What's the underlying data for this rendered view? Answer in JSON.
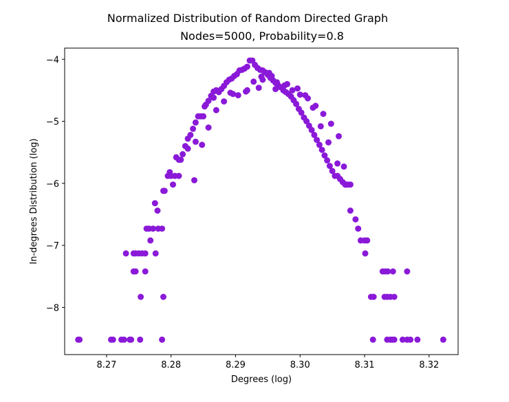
{
  "chart_data": {
    "type": "scatter",
    "suptitle": "Normalized Distribution of Random Directed Graph",
    "title": "Nodes=5000, Probability=0.8",
    "xlabel": "Degrees (log)",
    "ylabel": "In-degrees Distribution (log)",
    "xlim": [
      8.2635,
      8.3245
    ],
    "ylim": [
      -8.76,
      -3.82
    ],
    "x_ticks": [
      {
        "value": 8.27,
        "label": "8.27"
      },
      {
        "value": 8.28,
        "label": "8.28"
      },
      {
        "value": 8.29,
        "label": "8.29"
      },
      {
        "value": 8.3,
        "label": "8.30"
      },
      {
        "value": 8.31,
        "label": "8.31"
      },
      {
        "value": 8.32,
        "label": "8.32"
      }
    ],
    "y_ticks": [
      {
        "value": -4,
        "label": "−4"
      },
      {
        "value": -5,
        "label": "−5"
      },
      {
        "value": -6,
        "label": "−6"
      },
      {
        "value": -7,
        "label": "−7"
      },
      {
        "value": -8,
        "label": "−8"
      }
    ],
    "grid": false,
    "marker_color": "#8a19d8",
    "series": [
      {
        "x": [
          8.2656,
          8.2658,
          8.2707,
          8.271,
          8.2723,
          8.2727,
          8.2736,
          8.2738,
          8.2752,
          8.2786,
          8.3113,
          8.3135,
          8.314,
          8.3143,
          8.3146,
          8.3159,
          8.3166,
          8.3171,
          8.3182,
          8.3222,
          8.273,
          8.2742,
          8.2745,
          8.275,
          8.2755,
          8.276,
          8.2776,
          8.2742,
          8.2745,
          8.276,
          8.3128,
          8.3132,
          8.3136,
          8.3144,
          8.3166,
          8.2753,
          8.2788,
          8.311,
          8.3114,
          8.3131,
          8.3135,
          8.314,
          8.3146,
          8.2775,
          8.2766,
          8.2768,
          8.2762,
          8.2772,
          8.278,
          8.2786,
          8.3072,
          8.3078,
          8.3086,
          8.309,
          8.3094,
          8.31,
          8.3104,
          8.3101,
          8.2779,
          8.2788,
          8.279,
          8.2795,
          8.2798,
          8.28,
          8.2803,
          8.2806,
          8.2808,
          8.2812,
          8.2815,
          8.2818,
          8.2822,
          8.2826,
          8.283,
          8.2834,
          8.2838,
          8.2842,
          8.2846,
          8.285,
          8.2854,
          8.2858,
          8.2862,
          8.2866,
          8.287,
          8.2874,
          8.2878,
          8.2882,
          8.2886,
          8.289,
          8.2894,
          8.2898,
          8.2902,
          8.2906,
          8.291,
          8.2914,
          8.2918,
          8.2922,
          8.2926,
          8.293,
          8.2934,
          8.2938,
          8.2942,
          8.2946,
          8.295,
          8.2954,
          8.2958,
          8.2962,
          8.2966,
          8.297,
          8.2974,
          8.2978,
          8.2982,
          8.2986,
          8.299,
          8.2994,
          8.2998,
          8.3002,
          8.3006,
          8.301,
          8.3014,
          8.3018,
          8.3022,
          8.3026,
          8.303,
          8.3034,
          8.3038,
          8.3042,
          8.3046,
          8.305,
          8.3054,
          8.3058,
          8.3062,
          8.3066,
          8.307,
          8.3074,
          8.3078,
          8.2812,
          8.2826,
          8.2838,
          8.2848,
          8.2858,
          8.287,
          8.2882,
          8.2892,
          8.2904,
          8.2916,
          8.2928,
          8.294,
          8.2952,
          8.2964,
          8.2976,
          8.2988,
          8.3,
          8.3012,
          8.3024,
          8.3036,
          8.3048,
          8.306,
          8.3068,
          8.2836,
          8.2852,
          8.2866,
          8.2896,
          8.2918,
          8.2936,
          8.2942,
          8.2956,
          8.2962,
          8.298,
          8.2996,
          8.3008,
          8.302,
          8.3032,
          8.3044,
          8.3058
        ],
        "y": [
          -8.52,
          -8.52,
          -8.52,
          -8.52,
          -8.52,
          -8.52,
          -8.52,
          -8.52,
          -8.52,
          -8.52,
          -8.52,
          -8.52,
          -8.52,
          -8.52,
          -8.52,
          -8.52,
          -8.52,
          -8.52,
          -8.52,
          -8.52,
          -7.13,
          -7.13,
          -7.13,
          -7.13,
          -7.13,
          -7.13,
          -7.13,
          -7.42,
          -7.42,
          -7.42,
          -7.42,
          -7.42,
          -7.42,
          -7.42,
          -7.42,
          -7.83,
          -7.83,
          -7.83,
          -7.83,
          -7.83,
          -7.83,
          -7.83,
          -7.83,
          -6.32,
          -6.73,
          -6.92,
          -6.73,
          -6.73,
          -6.73,
          -6.73,
          -6.02,
          -6.44,
          -6.58,
          -6.73,
          -6.92,
          -6.92,
          -6.92,
          -7.13,
          -6.44,
          -6.12,
          -6.12,
          -5.88,
          -5.82,
          -5.88,
          -6.02,
          -5.88,
          -5.58,
          -5.62,
          -5.62,
          -5.53,
          -5.4,
          -5.28,
          -5.22,
          -5.12,
          -5.02,
          -4.92,
          -4.92,
          -4.92,
          -4.73,
          -4.67,
          -4.59,
          -4.52,
          -4.5,
          -4.53,
          -4.48,
          -4.43,
          -4.37,
          -4.33,
          -4.31,
          -4.27,
          -4.24,
          -4.18,
          -4.17,
          -4.15,
          -4.12,
          -4.02,
          -4.02,
          -4.09,
          -4.14,
          -4.17,
          -4.18,
          -4.21,
          -4.25,
          -4.3,
          -4.34,
          -4.38,
          -4.42,
          -4.45,
          -4.5,
          -4.53,
          -4.56,
          -4.6,
          -4.66,
          -4.72,
          -4.8,
          -4.86,
          -4.94,
          -5.0,
          -5.07,
          -5.14,
          -5.22,
          -5.3,
          -5.38,
          -5.46,
          -5.55,
          -5.63,
          -5.72,
          -5.8,
          -5.88,
          -5.88,
          -5.93,
          -5.98,
          -6.02,
          -6.02,
          -6.02,
          -5.88,
          -5.44,
          -5.33,
          -5.38,
          -5.1,
          -4.82,
          -4.68,
          -4.54,
          -4.58,
          -4.52,
          -4.36,
          -4.28,
          -4.22,
          -4.37,
          -4.42,
          -4.5,
          -4.57,
          -4.63,
          -4.75,
          -4.88,
          -5.04,
          -5.24,
          -5.73,
          -5.95,
          -4.76,
          -4.62,
          -4.56,
          -4.5,
          -4.46,
          -4.33,
          -4.27,
          -4.48,
          -4.4,
          -4.47,
          -4.58,
          -4.78,
          -5.08,
          -5.34,
          -5.68
        ]
      }
    ]
  }
}
